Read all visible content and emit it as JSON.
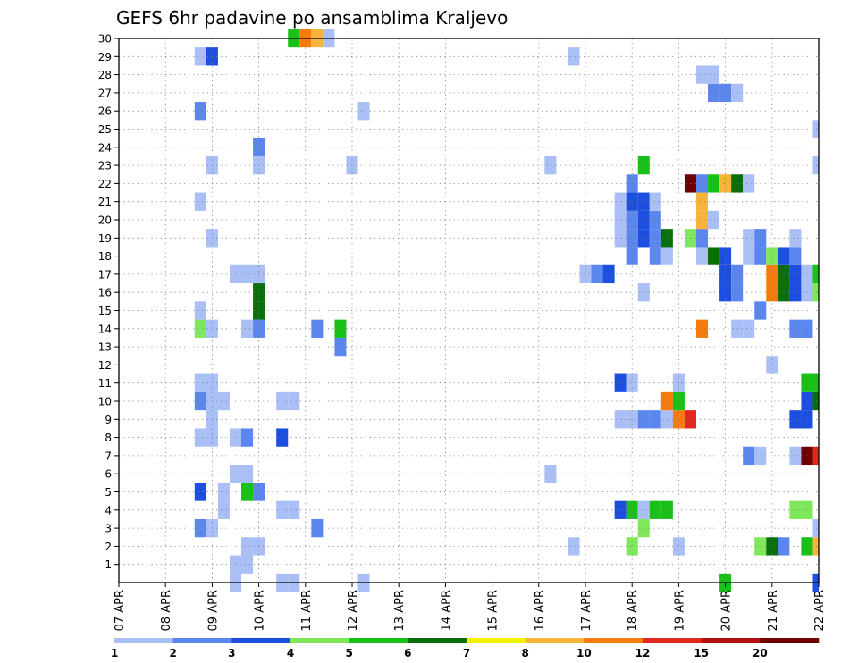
{
  "chart_data": {
    "type": "heatmap",
    "title": "GEFS 6hr padavine po ansamblima Kraljevo",
    "xlabel": "",
    "ylabel": "",
    "x_ticks": [
      "07 APR",
      "08 APR",
      "09 APR",
      "10 APR",
      "11 APR",
      "12 APR",
      "13 APR",
      "14 APR",
      "15 APR",
      "16 APR",
      "17 APR",
      "18 APR",
      "19 APR",
      "20 APR",
      "21 APR",
      "22 APR"
    ],
    "y_ticks": [
      "1",
      "2",
      "3",
      "4",
      "5",
      "6",
      "7",
      "8",
      "9",
      "10",
      "11",
      "12",
      "13",
      "14",
      "15",
      "16",
      "17",
      "18",
      "19",
      "20",
      "21",
      "22",
      "23",
      "24",
      "25",
      "26",
      "27",
      "28",
      "29",
      "30"
    ],
    "ylim": [
      0,
      30
    ],
    "grid": true,
    "legend_position": "bottom",
    "legend": {
      "labels": [
        "1",
        "2",
        "3",
        "4",
        "5",
        "6",
        "7",
        "8",
        "10",
        "12",
        "15",
        "20"
      ],
      "colors": [
        "#a9bff5",
        "#5b86ee",
        "#1c4fe0",
        "#7fe85a",
        "#18c018",
        "#0a6e0a",
        "#f2f200",
        "#f8b43a",
        "#f77b0a",
        "#e0281e",
        "#b40e0e",
        "#6e0000"
      ]
    },
    "x_unit": "6-hour step from 07 APR 00Z",
    "cells": [
      {
        "t": 15,
        "m": 30,
        "v": 5
      },
      {
        "t": 16,
        "m": 30,
        "v": 10
      },
      {
        "t": 17,
        "m": 30,
        "v": 8
      },
      {
        "t": 18,
        "m": 30,
        "v": 1
      },
      {
        "t": 14,
        "m": 0,
        "v": 1
      },
      {
        "t": 15,
        "m": 0,
        "v": 1
      },
      {
        "t": 10,
        "m": 0,
        "v": 1
      },
      {
        "t": 21,
        "m": 0,
        "v": 1
      },
      {
        "t": 52,
        "m": 0,
        "v": 5
      },
      {
        "t": 60,
        "m": 0,
        "v": 3
      },
      {
        "t": 10,
        "m": 1,
        "v": 1
      },
      {
        "t": 11,
        "m": 1,
        "v": 1
      },
      {
        "t": 11,
        "m": 2,
        "v": 1
      },
      {
        "t": 12,
        "m": 2,
        "v": 1
      },
      {
        "t": 39,
        "m": 2,
        "v": 1
      },
      {
        "t": 44,
        "m": 2,
        "v": 4
      },
      {
        "t": 48,
        "m": 2,
        "v": 1
      },
      {
        "t": 55,
        "m": 2,
        "v": 4
      },
      {
        "t": 56,
        "m": 2,
        "v": 6
      },
      {
        "t": 57,
        "m": 2,
        "v": 2
      },
      {
        "t": 59,
        "m": 2,
        "v": 5
      },
      {
        "t": 60,
        "m": 2,
        "v": 8
      },
      {
        "t": 7,
        "m": 3,
        "v": 2
      },
      {
        "t": 8,
        "m": 3,
        "v": 1
      },
      {
        "t": 17,
        "m": 3,
        "v": 2
      },
      {
        "t": 45,
        "m": 3,
        "v": 4
      },
      {
        "t": 60,
        "m": 3,
        "v": 1
      },
      {
        "t": 9,
        "m": 4,
        "v": 1
      },
      {
        "t": 14,
        "m": 4,
        "v": 1
      },
      {
        "t": 15,
        "m": 4,
        "v": 1
      },
      {
        "t": 43,
        "m": 4,
        "v": 3
      },
      {
        "t": 44,
        "m": 4,
        "v": 5
      },
      {
        "t": 45,
        "m": 4,
        "v": 1
      },
      {
        "t": 46,
        "m": 4,
        "v": 5
      },
      {
        "t": 47,
        "m": 4,
        "v": 5
      },
      {
        "t": 58,
        "m": 4,
        "v": 4
      },
      {
        "t": 59,
        "m": 4,
        "v": 4
      },
      {
        "t": 7,
        "m": 5,
        "v": 3
      },
      {
        "t": 9,
        "m": 5,
        "v": 1
      },
      {
        "t": 11,
        "m": 5,
        "v": 5
      },
      {
        "t": 12,
        "m": 5,
        "v": 2
      },
      {
        "t": 10,
        "m": 6,
        "v": 1
      },
      {
        "t": 11,
        "m": 6,
        "v": 1
      },
      {
        "t": 37,
        "m": 6,
        "v": 1
      },
      {
        "t": 54,
        "m": 7,
        "v": 2
      },
      {
        "t": 55,
        "m": 7,
        "v": 1
      },
      {
        "t": 58,
        "m": 7,
        "v": 1
      },
      {
        "t": 59,
        "m": 7,
        "v": 20
      },
      {
        "t": 60,
        "m": 7,
        "v": 12
      },
      {
        "t": 7,
        "m": 8,
        "v": 1
      },
      {
        "t": 8,
        "m": 8,
        "v": 1
      },
      {
        "t": 10,
        "m": 8,
        "v": 1
      },
      {
        "t": 11,
        "m": 8,
        "v": 2
      },
      {
        "t": 14,
        "m": 8,
        "v": 3
      },
      {
        "t": 8,
        "m": 9,
        "v": 1
      },
      {
        "t": 43,
        "m": 9,
        "v": 1
      },
      {
        "t": 44,
        "m": 9,
        "v": 1
      },
      {
        "t": 45,
        "m": 9,
        "v": 2
      },
      {
        "t": 46,
        "m": 9,
        "v": 2
      },
      {
        "t": 47,
        "m": 9,
        "v": 1
      },
      {
        "t": 48,
        "m": 9,
        "v": 10
      },
      {
        "t": 49,
        "m": 9,
        "v": 12
      },
      {
        "t": 58,
        "m": 9,
        "v": 3
      },
      {
        "t": 59,
        "m": 9,
        "v": 3
      },
      {
        "t": 7,
        "m": 10,
        "v": 2
      },
      {
        "t": 8,
        "m": 10,
        "v": 1
      },
      {
        "t": 9,
        "m": 10,
        "v": 1
      },
      {
        "t": 14,
        "m": 10,
        "v": 1
      },
      {
        "t": 15,
        "m": 10,
        "v": 1
      },
      {
        "t": 47,
        "m": 10,
        "v": 10
      },
      {
        "t": 48,
        "m": 10,
        "v": 5
      },
      {
        "t": 59,
        "m": 10,
        "v": 3
      },
      {
        "t": 60,
        "m": 10,
        "v": 6
      },
      {
        "t": 7,
        "m": 11,
        "v": 1
      },
      {
        "t": 8,
        "m": 11,
        "v": 1
      },
      {
        "t": 43,
        "m": 11,
        "v": 3
      },
      {
        "t": 44,
        "m": 11,
        "v": 1
      },
      {
        "t": 48,
        "m": 11,
        "v": 1
      },
      {
        "t": 59,
        "m": 11,
        "v": 5
      },
      {
        "t": 60,
        "m": 11,
        "v": 5
      },
      {
        "t": 56,
        "m": 12,
        "v": 1
      },
      {
        "t": 19,
        "m": 13,
        "v": 2
      },
      {
        "t": 7,
        "m": 14,
        "v": 4
      },
      {
        "t": 8,
        "m": 14,
        "v": 1
      },
      {
        "t": 11,
        "m": 14,
        "v": 1
      },
      {
        "t": 12,
        "m": 14,
        "v": 2
      },
      {
        "t": 17,
        "m": 14,
        "v": 2
      },
      {
        "t": 19,
        "m": 14,
        "v": 5
      },
      {
        "t": 50,
        "m": 14,
        "v": 10
      },
      {
        "t": 53,
        "m": 14,
        "v": 1
      },
      {
        "t": 54,
        "m": 14,
        "v": 1
      },
      {
        "t": 58,
        "m": 14,
        "v": 2
      },
      {
        "t": 59,
        "m": 14,
        "v": 2
      },
      {
        "t": 7,
        "m": 15,
        "v": 1
      },
      {
        "t": 12,
        "m": 15,
        "v": 6
      },
      {
        "t": 55,
        "m": 15,
        "v": 2
      },
      {
        "t": 12,
        "m": 16,
        "v": 6
      },
      {
        "t": 45,
        "m": 16,
        "v": 1
      },
      {
        "t": 52,
        "m": 16,
        "v": 3
      },
      {
        "t": 53,
        "m": 16,
        "v": 2
      },
      {
        "t": 56,
        "m": 16,
        "v": 10
      },
      {
        "t": 57,
        "m": 16,
        "v": 6
      },
      {
        "t": 58,
        "m": 16,
        "v": 3
      },
      {
        "t": 59,
        "m": 16,
        "v": 1
      },
      {
        "t": 60,
        "m": 16,
        "v": 4
      },
      {
        "t": 10,
        "m": 17,
        "v": 1
      },
      {
        "t": 11,
        "m": 17,
        "v": 1
      },
      {
        "t": 12,
        "m": 17,
        "v": 1
      },
      {
        "t": 40,
        "m": 17,
        "v": 1
      },
      {
        "t": 41,
        "m": 17,
        "v": 2
      },
      {
        "t": 42,
        "m": 17,
        "v": 3
      },
      {
        "t": 52,
        "m": 17,
        "v": 3
      },
      {
        "t": 53,
        "m": 17,
        "v": 2
      },
      {
        "t": 56,
        "m": 17,
        "v": 10
      },
      {
        "t": 57,
        "m": 17,
        "v": 6
      },
      {
        "t": 58,
        "m": 17,
        "v": 3
      },
      {
        "t": 59,
        "m": 17,
        "v": 1
      },
      {
        "t": 60,
        "m": 17,
        "v": 5
      },
      {
        "t": 44,
        "m": 18,
        "v": 2
      },
      {
        "t": 46,
        "m": 18,
        "v": 2
      },
      {
        "t": 47,
        "m": 18,
        "v": 1
      },
      {
        "t": 50,
        "m": 18,
        "v": 1
      },
      {
        "t": 51,
        "m": 18,
        "v": 6
      },
      {
        "t": 52,
        "m": 18,
        "v": 3
      },
      {
        "t": 54,
        "m": 18,
        "v": 1
      },
      {
        "t": 55,
        "m": 18,
        "v": 2
      },
      {
        "t": 56,
        "m": 18,
        "v": 4
      },
      {
        "t": 57,
        "m": 18,
        "v": 3
      },
      {
        "t": 58,
        "m": 18,
        "v": 2
      },
      {
        "t": 8,
        "m": 19,
        "v": 1
      },
      {
        "t": 43,
        "m": 19,
        "v": 1
      },
      {
        "t": 44,
        "m": 19,
        "v": 2
      },
      {
        "t": 45,
        "m": 19,
        "v": 3
      },
      {
        "t": 46,
        "m": 19,
        "v": 2
      },
      {
        "t": 47,
        "m": 19,
        "v": 6
      },
      {
        "t": 49,
        "m": 19,
        "v": 4
      },
      {
        "t": 50,
        "m": 19,
        "v": 2
      },
      {
        "t": 54,
        "m": 19,
        "v": 1
      },
      {
        "t": 55,
        "m": 19,
        "v": 2
      },
      {
        "t": 58,
        "m": 19,
        "v": 1
      },
      {
        "t": 43,
        "m": 20,
        "v": 1
      },
      {
        "t": 44,
        "m": 20,
        "v": 2
      },
      {
        "t": 45,
        "m": 20,
        "v": 3
      },
      {
        "t": 46,
        "m": 20,
        "v": 2
      },
      {
        "t": 50,
        "m": 20,
        "v": 8
      },
      {
        "t": 51,
        "m": 20,
        "v": 1
      },
      {
        "t": 7,
        "m": 21,
        "v": 1
      },
      {
        "t": 43,
        "m": 21,
        "v": 1
      },
      {
        "t": 44,
        "m": 21,
        "v": 3
      },
      {
        "t": 45,
        "m": 21,
        "v": 3
      },
      {
        "t": 46,
        "m": 21,
        "v": 1
      },
      {
        "t": 50,
        "m": 21,
        "v": 8
      },
      {
        "t": 44,
        "m": 22,
        "v": 2
      },
      {
        "t": 49,
        "m": 22,
        "v": 20
      },
      {
        "t": 50,
        "m": 22,
        "v": 2
      },
      {
        "t": 51,
        "m": 22,
        "v": 5
      },
      {
        "t": 52,
        "m": 22,
        "v": 8
      },
      {
        "t": 53,
        "m": 22,
        "v": 6
      },
      {
        "t": 54,
        "m": 22,
        "v": 1
      },
      {
        "t": 8,
        "m": 23,
        "v": 1
      },
      {
        "t": 12,
        "m": 23,
        "v": 1
      },
      {
        "t": 20,
        "m": 23,
        "v": 1
      },
      {
        "t": 37,
        "m": 23,
        "v": 1
      },
      {
        "t": 45,
        "m": 23,
        "v": 5
      },
      {
        "t": 60,
        "m": 23,
        "v": 1
      },
      {
        "t": 12,
        "m": 24,
        "v": 2
      },
      {
        "t": 60,
        "m": 25,
        "v": 1
      },
      {
        "t": 7,
        "m": 26,
        "v": 2
      },
      {
        "t": 21,
        "m": 26,
        "v": 1
      },
      {
        "t": 51,
        "m": 27,
        "v": 2
      },
      {
        "t": 52,
        "m": 27,
        "v": 2
      },
      {
        "t": 53,
        "m": 27,
        "v": 1
      },
      {
        "t": 50,
        "m": 28,
        "v": 1
      },
      {
        "t": 51,
        "m": 28,
        "v": 1
      },
      {
        "t": 7,
        "m": 29,
        "v": 1
      },
      {
        "t": 8,
        "m": 29,
        "v": 3
      },
      {
        "t": 39,
        "m": 29,
        "v": 1
      }
    ]
  }
}
